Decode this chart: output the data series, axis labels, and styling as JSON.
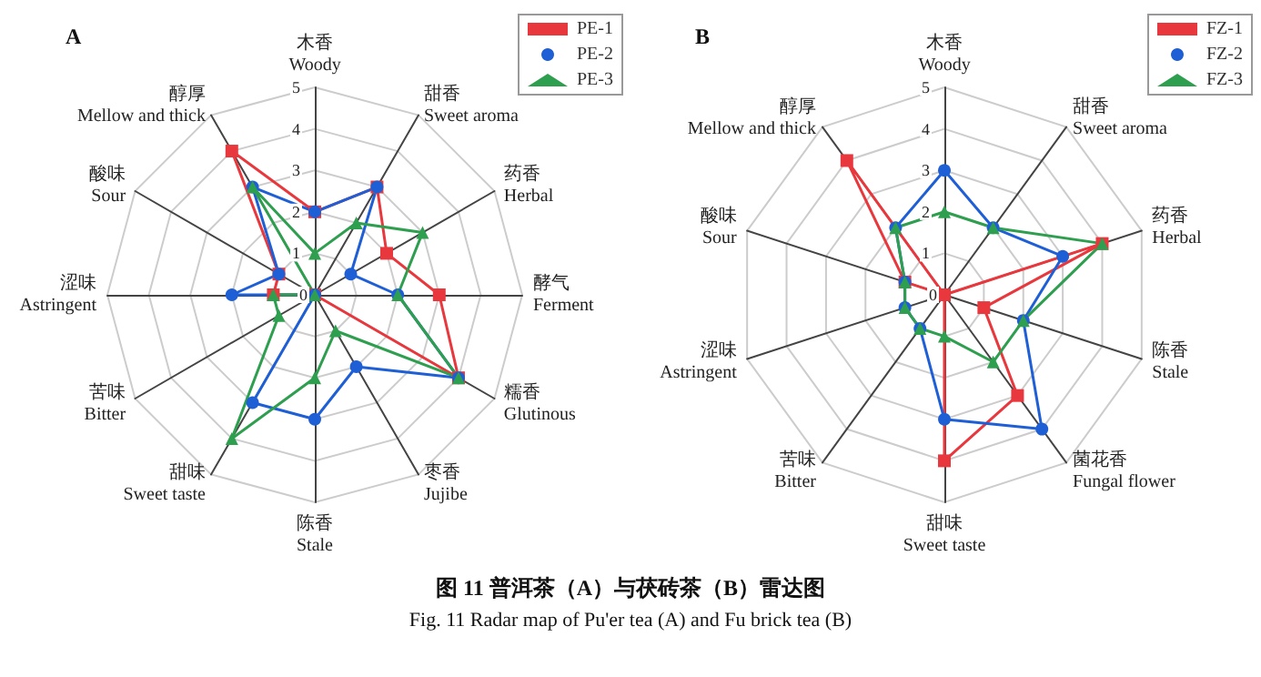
{
  "chart_data": [
    {
      "type": "radar",
      "title": "A",
      "categories": [
        "木香\nWoody",
        "甜香\nSweet aroma",
        "药香\nHerbal",
        "酵气\nFerment",
        "糯香\nGlutinous",
        "枣香\nJujibe",
        "陈香\nStale",
        "甜味\nSweet taste",
        "苦味\nBitter",
        "涩味\nAstringent",
        "酸味\nSour",
        "醇厚\nMellow and thick"
      ],
      "series": [
        {
          "name": "PE-1",
          "color": "#e8383d",
          "marker": "square",
          "values": [
            2,
            3,
            2,
            3,
            4,
            0,
            0,
            0,
            0,
            1,
            1,
            4
          ]
        },
        {
          "name": "PE-2",
          "color": "#1f5fd6",
          "marker": "circle",
          "values": [
            2,
            3,
            1,
            2,
            4,
            2,
            3,
            3,
            0,
            2,
            1,
            3
          ]
        },
        {
          "name": "PE-3",
          "color": "#2e9e4f",
          "marker": "triangle",
          "values": [
            1,
            2,
            3,
            2,
            4,
            1,
            2,
            4,
            1,
            1,
            0,
            3
          ]
        }
      ],
      "ylim": [
        0,
        5
      ],
      "yticks": [
        0,
        1,
        2,
        3,
        4,
        5
      ],
      "grid": true,
      "legend": "top right",
      "annotations": [
        "图 11  普洱茶（A）与茯砖茶（B）雷达图",
        "Fig. 11 Radar map of Pu'er tea (A) and Fu brick tea (B)"
      ]
    },
    {
      "type": "radar",
      "title": "B",
      "categories": [
        "木香\nWoody",
        "甜香\nSweet aroma",
        "药香\nHerbal",
        "陈香\nStale",
        "菌花香\nFungal flower",
        "甜味\nSweet taste",
        "苦味\nBitter",
        "涩味\nAstringent",
        "酸味\nSour",
        "醇厚\nMellow and thick"
      ],
      "series": [
        {
          "name": "FZ-1",
          "color": "#e8383d",
          "marker": "square",
          "values": [
            0,
            0,
            4,
            1,
            3,
            4,
            0,
            0,
            1,
            4
          ]
        },
        {
          "name": "FZ-2",
          "color": "#1f5fd6",
          "marker": "circle",
          "values": [
            3,
            2,
            3,
            2,
            4,
            3,
            1,
            1,
            1,
            2
          ]
        },
        {
          "name": "FZ-3",
          "color": "#2e9e4f",
          "marker": "triangle",
          "values": [
            2,
            2,
            4,
            2,
            2,
            1,
            1,
            1,
            1,
            2
          ]
        }
      ],
      "ylim": [
        0,
        5
      ],
      "yticks": [
        0,
        1,
        2,
        3,
        4,
        5
      ],
      "grid": true,
      "legend": "top right"
    }
  ]
}
